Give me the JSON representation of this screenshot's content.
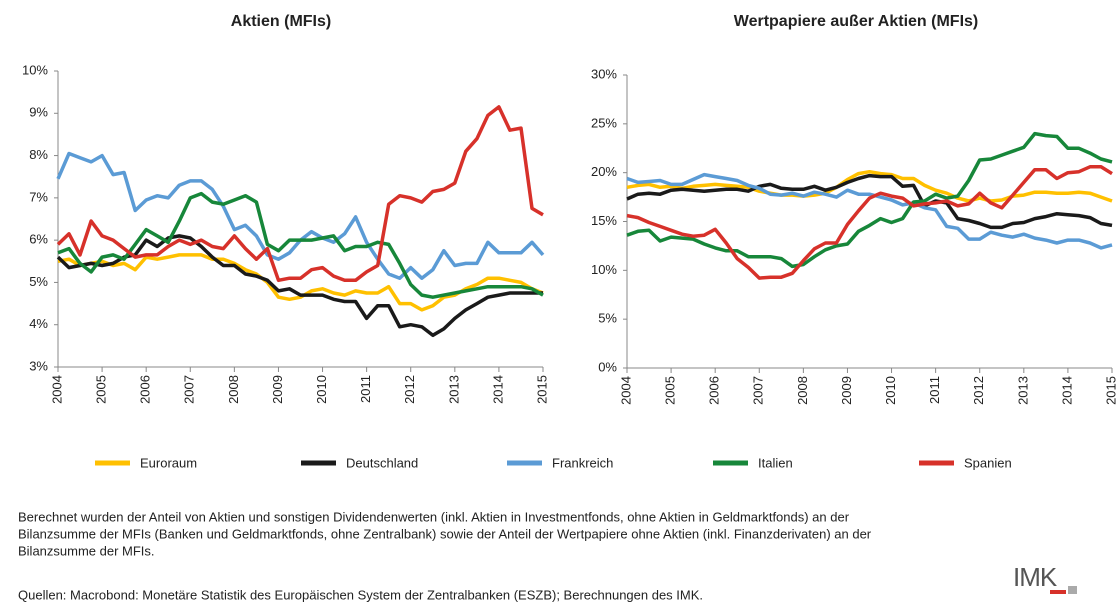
{
  "chart_data": [
    {
      "type": "line",
      "title": "Aktien (MFIs)",
      "x": [
        2004,
        2004.25,
        2004.5,
        2004.75,
        2005,
        2005.25,
        2005.5,
        2005.75,
        2006,
        2006.25,
        2006.5,
        2006.75,
        2007,
        2007.25,
        2007.5,
        2007.75,
        2008,
        2008.25,
        2008.5,
        2008.75,
        2009,
        2009.25,
        2009.5,
        2009.75,
        2010,
        2010.25,
        2010.5,
        2010.75,
        2011,
        2011.25,
        2011.5,
        2011.75,
        2012,
        2012.25,
        2012.5,
        2012.75,
        2013,
        2013.25,
        2013.5,
        2013.75,
        2014,
        2014.25,
        2014.5,
        2014.75,
        2015
      ],
      "xlim": [
        2004,
        2015
      ],
      "xticks": [
        2004,
        2005,
        2006,
        2007,
        2008,
        2009,
        2010,
        2011,
        2012,
        2013,
        2014,
        2015
      ],
      "ylim": [
        3,
        10
      ],
      "yticks": [
        {
          "value": 3,
          "label": "3%"
        },
        {
          "value": 4,
          "label": "4%"
        },
        {
          "value": 5,
          "label": "5%"
        },
        {
          "value": 6,
          "label": "6%"
        },
        {
          "value": 7,
          "label": "7%"
        },
        {
          "value": 8,
          "label": "8%"
        },
        {
          "value": 9,
          "label": "9%"
        },
        {
          "value": 10,
          "label": "10%"
        }
      ],
      "series": [
        {
          "name": "Euroraum",
          "color": "#ffc000",
          "values": [
            5.5,
            5.55,
            5.4,
            5.45,
            5.5,
            5.4,
            5.45,
            5.3,
            5.6,
            5.55,
            5.6,
            5.65,
            5.65,
            5.65,
            5.55,
            5.55,
            5.45,
            5.3,
            5.2,
            5.0,
            4.65,
            4.6,
            4.65,
            4.8,
            4.85,
            4.75,
            4.7,
            4.8,
            4.75,
            4.75,
            4.9,
            4.5,
            4.5,
            4.35,
            4.45,
            4.65,
            4.7,
            4.85,
            4.95,
            5.1,
            5.1,
            5.05,
            5.0,
            4.85,
            4.75
          ]
        },
        {
          "name": "Deutschland",
          "color": "#1a1a1a",
          "values": [
            5.6,
            5.35,
            5.4,
            5.45,
            5.4,
            5.45,
            5.6,
            5.65,
            6.0,
            5.85,
            6.05,
            6.1,
            6.05,
            5.85,
            5.6,
            5.4,
            5.4,
            5.2,
            5.15,
            5.05,
            4.8,
            4.85,
            4.7,
            4.7,
            4.7,
            4.6,
            4.55,
            4.55,
            4.15,
            4.45,
            4.45,
            3.95,
            4.0,
            3.95,
            3.75,
            3.9,
            4.15,
            4.35,
            4.5,
            4.65,
            4.7,
            4.75,
            4.75,
            4.75,
            4.75
          ]
        },
        {
          "name": "Frankreich",
          "color": "#5b9bd5",
          "values": [
            7.45,
            8.05,
            7.95,
            7.85,
            8.0,
            7.55,
            7.6,
            6.7,
            6.95,
            7.05,
            7.0,
            7.3,
            7.4,
            7.4,
            7.2,
            6.8,
            6.25,
            6.35,
            6.1,
            5.65,
            5.55,
            5.7,
            6.0,
            6.2,
            6.05,
            5.95,
            6.15,
            6.55,
            5.95,
            5.55,
            5.2,
            5.1,
            5.35,
            5.1,
            5.3,
            5.75,
            5.4,
            5.45,
            5.45,
            5.95,
            5.7,
            5.7,
            5.7,
            5.95,
            5.65
          ]
        },
        {
          "name": "Italien",
          "color": "#17873a",
          "values": [
            5.7,
            5.8,
            5.45,
            5.25,
            5.6,
            5.65,
            5.55,
            5.9,
            6.25,
            6.1,
            5.95,
            6.45,
            7.0,
            7.1,
            6.9,
            6.85,
            6.95,
            7.05,
            6.9,
            5.9,
            5.75,
            6.0,
            6.0,
            6.0,
            6.05,
            6.1,
            5.75,
            5.85,
            5.85,
            5.95,
            5.9,
            5.45,
            4.95,
            4.7,
            4.65,
            4.7,
            4.75,
            4.8,
            4.85,
            4.9,
            4.9,
            4.9,
            4.9,
            4.85,
            4.7
          ]
        },
        {
          "name": "Spanien",
          "color": "#d7312a",
          "values": [
            5.9,
            6.15,
            5.65,
            6.45,
            6.1,
            6.0,
            5.8,
            5.6,
            5.65,
            5.65,
            5.85,
            6.0,
            5.9,
            6.0,
            5.85,
            5.8,
            6.1,
            5.8,
            5.55,
            5.8,
            5.05,
            5.1,
            5.1,
            5.3,
            5.35,
            5.15,
            5.05,
            5.05,
            5.25,
            5.4,
            6.85,
            7.05,
            7.0,
            6.9,
            7.15,
            7.2,
            7.35,
            8.1,
            8.4,
            8.95,
            9.15,
            8.6,
            8.65,
            6.75,
            6.6
          ]
        }
      ]
    },
    {
      "type": "line",
      "title": "Wertpapiere außer Aktien (MFIs)",
      "x": [
        2004,
        2004.25,
        2004.5,
        2004.75,
        2005,
        2005.25,
        2005.5,
        2005.75,
        2006,
        2006.25,
        2006.5,
        2006.75,
        2007,
        2007.25,
        2007.5,
        2007.75,
        2008,
        2008.25,
        2008.5,
        2008.75,
        2009,
        2009.25,
        2009.5,
        2009.75,
        2010,
        2010.25,
        2010.5,
        2010.75,
        2011,
        2011.25,
        2011.5,
        2011.75,
        2012,
        2012.25,
        2012.5,
        2012.75,
        2013,
        2013.25,
        2013.5,
        2013.75,
        2014,
        2014.25,
        2014.5,
        2014.75,
        2015
      ],
      "xlim": [
        2004,
        2015
      ],
      "xticks": [
        2004,
        2005,
        2006,
        2007,
        2008,
        2009,
        2010,
        2011,
        2012,
        2013,
        2014,
        2015
      ],
      "ylim": [
        0,
        30
      ],
      "yticks": [
        {
          "value": 0,
          "label": "0%"
        },
        {
          "value": 5,
          "label": "5%"
        },
        {
          "value": 10,
          "label": "10%"
        },
        {
          "value": 15,
          "label": "15%"
        },
        {
          "value": 20,
          "label": "20%"
        },
        {
          "value": 25,
          "label": "25%"
        },
        {
          "value": 30,
          "label": "30%"
        }
      ],
      "series": [
        {
          "color": "#ffc000",
          "values": [
            18.5,
            18.7,
            18.8,
            18.5,
            18.6,
            18.4,
            18.6,
            18.7,
            18.8,
            18.7,
            18.6,
            18.5,
            18.1,
            17.9,
            17.7,
            17.7,
            17.6,
            17.7,
            17.9,
            18.5,
            19.3,
            19.9,
            20.1,
            19.9,
            19.8,
            19.4,
            19.4,
            18.7,
            18.2,
            17.9,
            17.4,
            17.1,
            17.4,
            17.1,
            17.2,
            17.6,
            17.7,
            18.0,
            18.0,
            17.9,
            17.9,
            18.0,
            17.9,
            17.5,
            17.1
          ]
        },
        {
          "color": "#1a1a1a",
          "values": [
            17.3,
            17.8,
            17.9,
            17.8,
            18.2,
            18.3,
            18.2,
            18.1,
            18.2,
            18.3,
            18.3,
            18.1,
            18.6,
            18.8,
            18.4,
            18.3,
            18.3,
            18.6,
            18.2,
            18.5,
            19.0,
            19.4,
            19.7,
            19.6,
            19.6,
            18.6,
            18.7,
            16.6,
            17.1,
            16.9,
            15.3,
            15.1,
            14.8,
            14.4,
            14.4,
            14.8,
            14.9,
            15.3,
            15.5,
            15.8,
            15.7,
            15.6,
            15.4,
            14.8,
            14.6
          ]
        },
        {
          "color": "#5b9bd5",
          "values": [
            19.4,
            19.0,
            19.1,
            19.2,
            18.8,
            18.8,
            19.3,
            19.8,
            19.6,
            19.4,
            19.2,
            18.7,
            18.4,
            17.8,
            17.7,
            17.9,
            17.6,
            18.0,
            17.8,
            17.5,
            18.2,
            17.8,
            17.8,
            17.5,
            17.2,
            16.7,
            16.9,
            16.4,
            16.2,
            14.5,
            14.3,
            13.2,
            13.2,
            13.9,
            13.6,
            13.4,
            13.7,
            13.3,
            13.1,
            12.8,
            13.1,
            13.1,
            12.8,
            12.3,
            12.6
          ]
        },
        {
          "color": "#17873a",
          "values": [
            13.6,
            14.0,
            14.1,
            13.0,
            13.4,
            13.3,
            13.2,
            12.7,
            12.3,
            12.0,
            12.0,
            11.4,
            11.4,
            11.4,
            11.2,
            10.4,
            10.6,
            11.4,
            12.1,
            12.5,
            12.7,
            14.0,
            14.6,
            15.3,
            14.9,
            15.3,
            17.0,
            17.1,
            17.8,
            17.4,
            17.6,
            19.2,
            21.3,
            21.4,
            21.8,
            22.2,
            22.6,
            24.0,
            23.8,
            23.7,
            22.5,
            22.5,
            22.0,
            21.4,
            21.1
          ]
        },
        {
          "color": "#d7312a",
          "values": [
            15.6,
            15.4,
            14.9,
            14.5,
            14.1,
            13.7,
            13.5,
            13.6,
            14.2,
            12.8,
            11.2,
            10.3,
            9.2,
            9.3,
            9.3,
            9.7,
            11.0,
            12.2,
            12.8,
            12.8,
            14.7,
            16.1,
            17.4,
            17.9,
            17.6,
            17.4,
            16.6,
            16.8,
            16.9,
            17.1,
            16.6,
            16.8,
            17.9,
            16.9,
            16.4,
            17.7,
            19.0,
            20.3,
            20.3,
            19.4,
            20.0,
            20.1,
            20.6,
            20.6,
            19.9
          ]
        }
      ]
    }
  ],
  "note": [
    "Berechnet wurden der Anteil von Aktien und sonstigen Dividendenwerten (inkl. Aktien in Investmentfonds, ohne Aktien in Geldmarktfonds) an der",
    "Bilanzsumme der MFIs (Banken und Geldmarktfonds, ohne Zentralbank) sowie der Anteil der Wertpapiere ohne Aktien (inkl. Finanzderivaten) an der",
    "Bilanzsumme der MFIs."
  ],
  "source": "Quellen: Macrobond: Monetäre Statistik des Europäischen System der Zentralbanken (ESZB); Berechnungen des IMK.",
  "logo": "IMK"
}
